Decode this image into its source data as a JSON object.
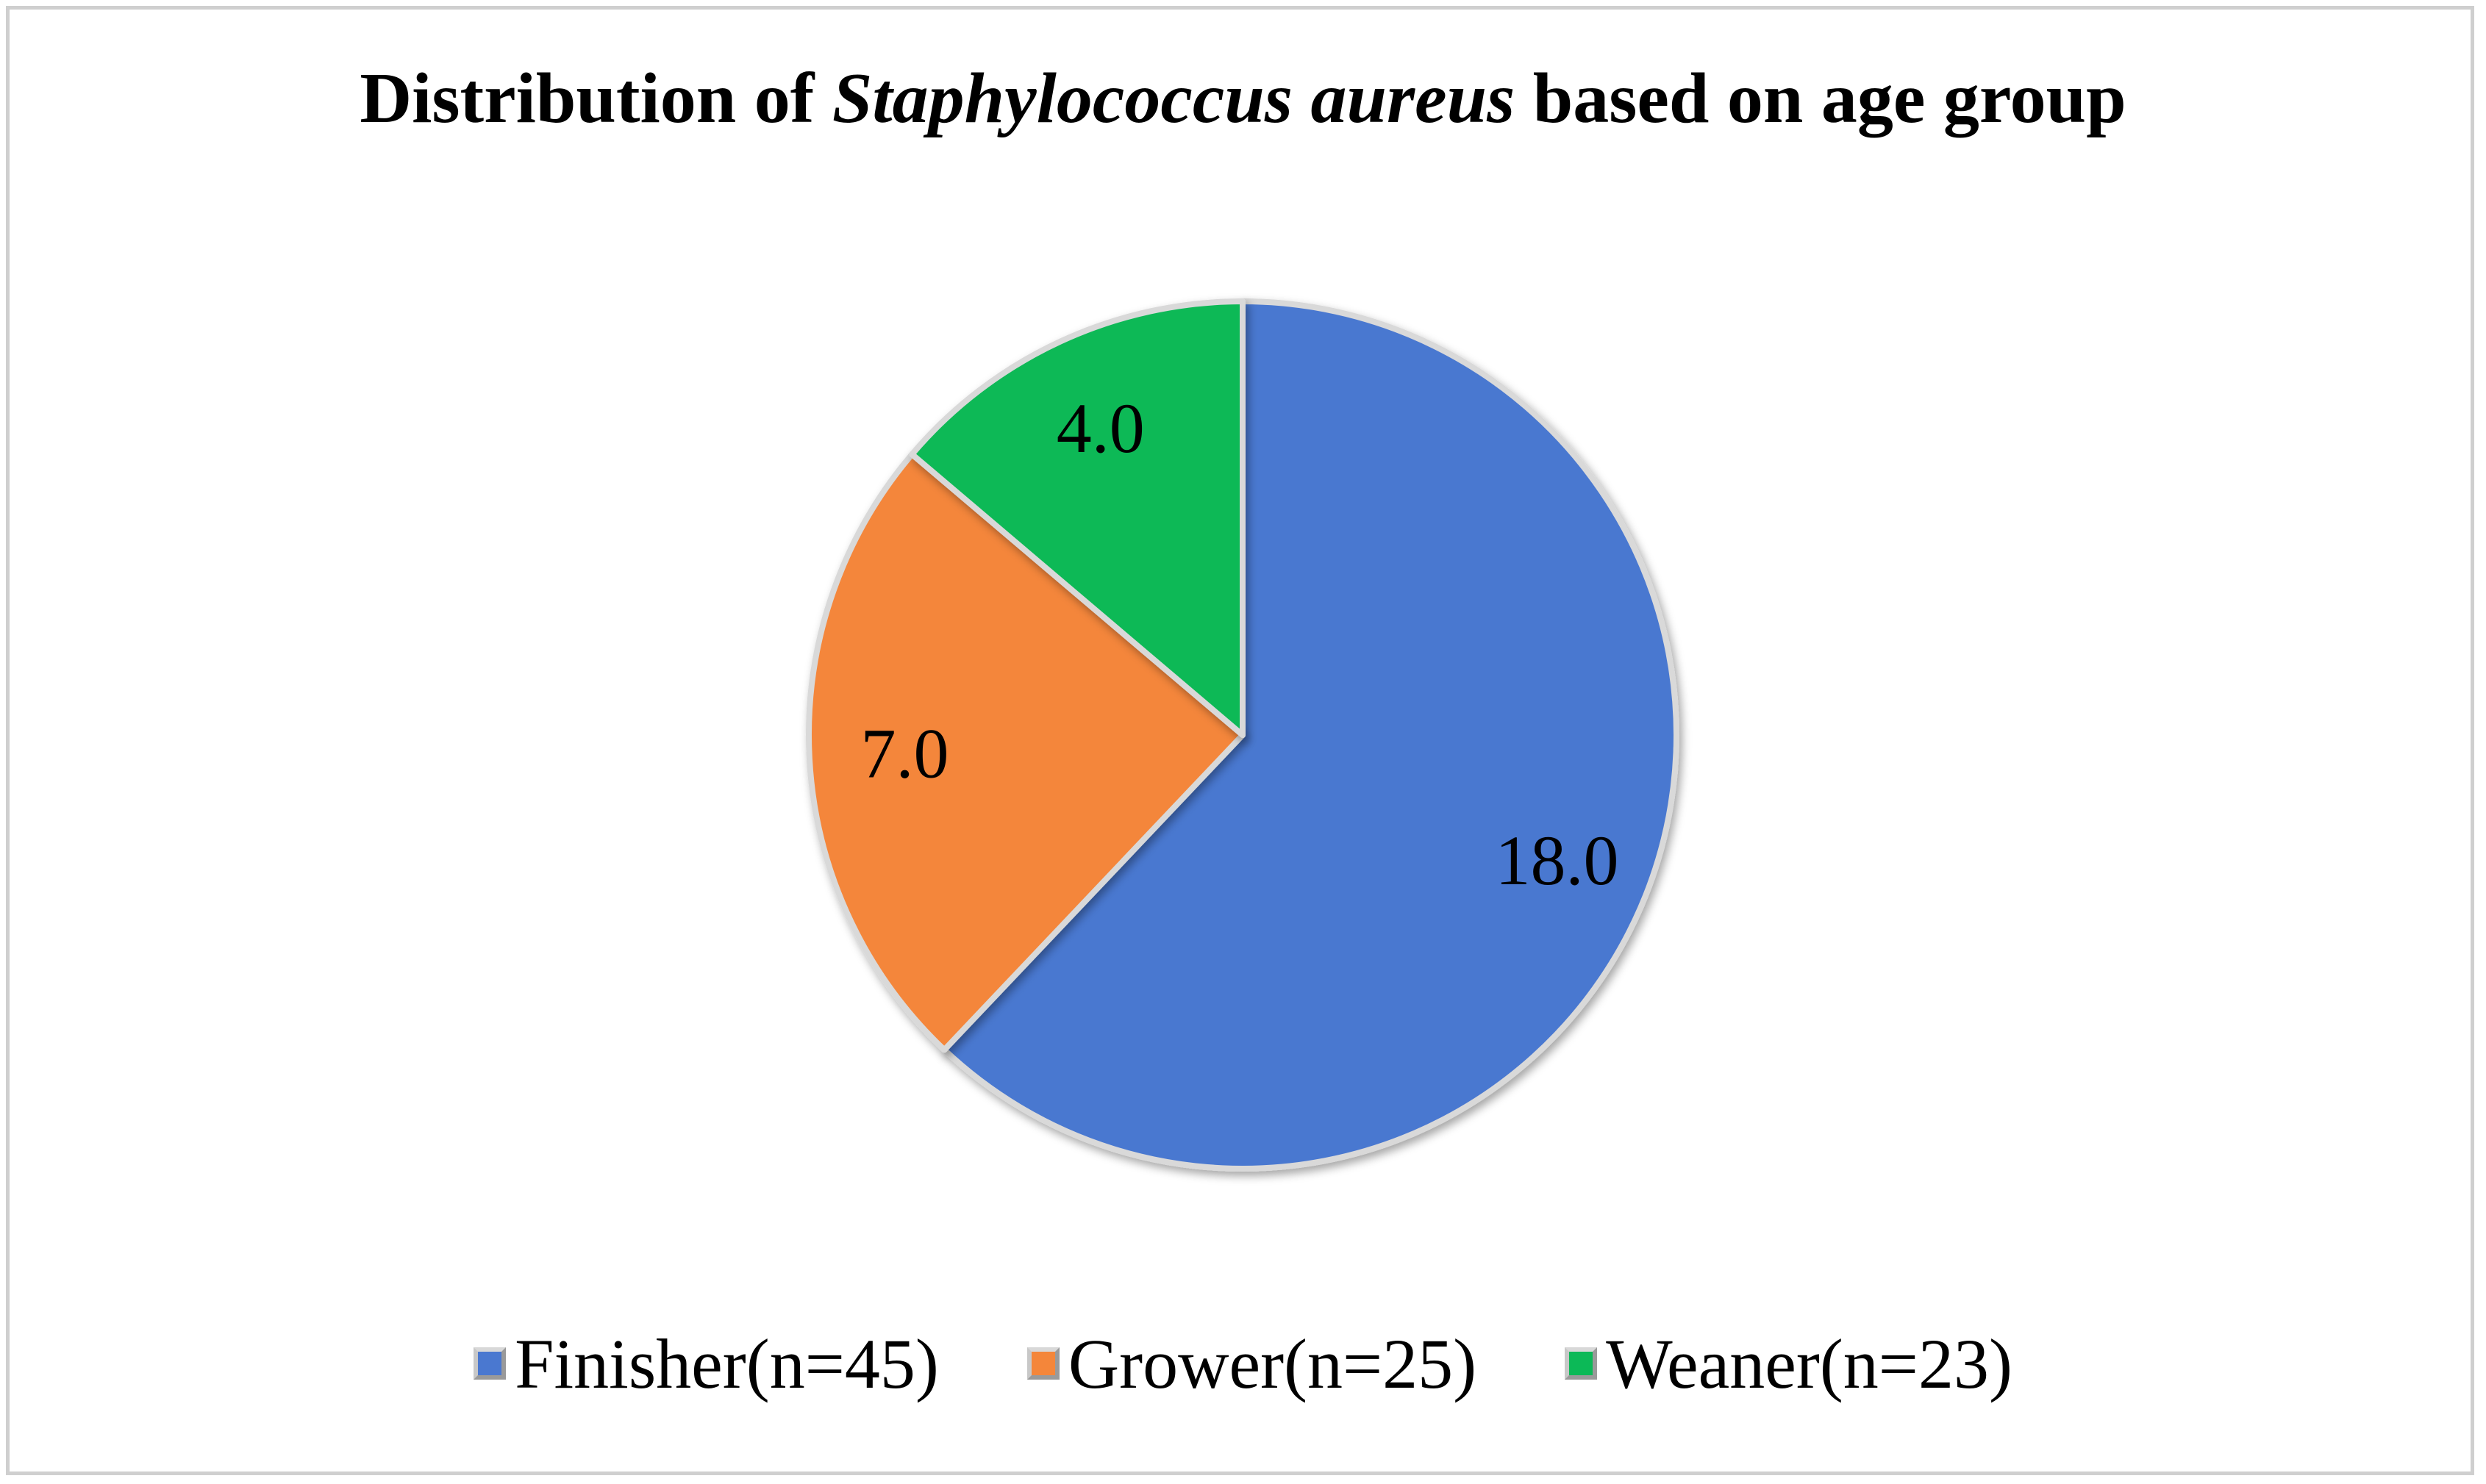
{
  "title": {
    "prefix": "Distribution of ",
    "italic": "Staphylococcus aureus",
    "suffix": " based on age group"
  },
  "chart_data": {
    "type": "pie",
    "categories": [
      "Finisher(n=45)",
      "Grower(n=25)",
      "Weaner(n=23)"
    ],
    "values": [
      18.0,
      7.0,
      4.0
    ],
    "data_labels": [
      "18.0",
      "7.0",
      "4.0"
    ],
    "colors": [
      "#4a78d0",
      "#f4863a",
      "#0cb957"
    ],
    "start_angle_deg": 0,
    "direction": "clockwise",
    "legend_position": "bottom"
  }
}
